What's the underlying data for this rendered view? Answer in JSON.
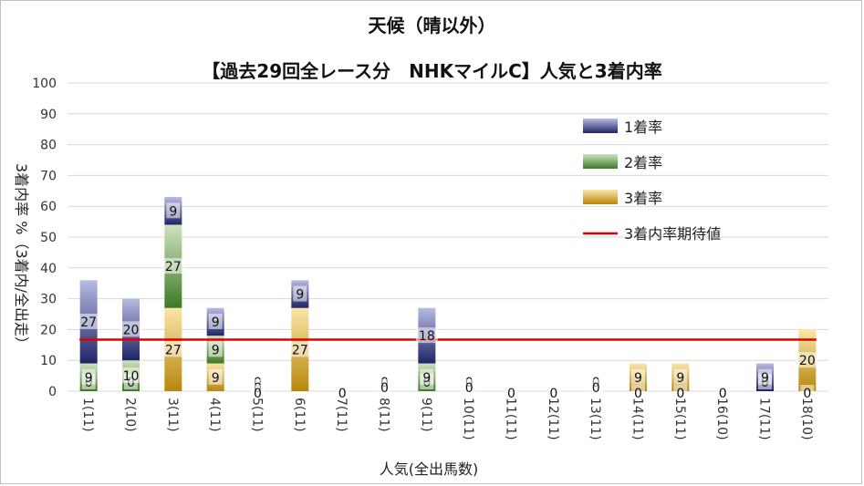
{
  "chart_data": {
    "type": "bar",
    "stacked": true,
    "title": "天候（晴以外）",
    "subtitle": "【過去29回全レース分　NHKマイルC】人気と3着内率",
    "xlabel": "人気(全出馬数)",
    "ylabel": "3着内率 %（3着内/全出走）",
    "ylim": [
      0,
      100
    ],
    "y_ticks": [
      "0",
      "10",
      "20",
      "30",
      "40",
      "50",
      "60",
      "70",
      "80",
      "90",
      "100"
    ],
    "categories": [
      "1(11)",
      "2(10)",
      "3(11)",
      "4(11)",
      "5(11)",
      "6(11)",
      "7(11)",
      "8(11)",
      "9(11)",
      "10(11)",
      "11(11)",
      "12(11)",
      "13(11)",
      "14(11)",
      "15(11)",
      "16(10)",
      "17(11)",
      "18(10)"
    ],
    "series": [
      {
        "name": "3着率",
        "color": "#d4a017",
        "values": [
          0,
          0,
          27,
          9,
          0,
          27,
          0,
          0,
          0,
          0,
          0,
          0,
          0,
          9,
          9,
          0,
          0,
          20
        ]
      },
      {
        "name": "2着率",
        "color": "#5b9a3c",
        "values": [
          9,
          10,
          27,
          9,
          0,
          0,
          0,
          0,
          9,
          0,
          0,
          0,
          0,
          0,
          0,
          0,
          0,
          0
        ]
      },
      {
        "name": "1着率",
        "color": "#3a3f8f",
        "values": [
          27,
          20,
          9,
          9,
          0,
          9,
          0,
          0,
          18,
          0,
          0,
          0,
          0,
          0,
          0,
          0,
          9,
          0
        ]
      }
    ],
    "data_labels": [
      [
        "0",
        "9",
        "27"
      ],
      [
        "0",
        "10",
        "20"
      ],
      [
        "27",
        "27",
        "9"
      ],
      [
        "9",
        "9",
        "9"
      ],
      [
        "0",
        "0",
        "0"
      ],
      [
        "27",
        "",
        "9"
      ],
      [
        "",
        "",
        "0"
      ],
      [
        "0",
        "0",
        ""
      ],
      [
        "0",
        "9",
        "18"
      ],
      [
        "0",
        "0",
        ""
      ],
      [
        "",
        "",
        "0"
      ],
      [
        "",
        "",
        "0"
      ],
      [
        "0",
        "0",
        ""
      ],
      [
        "9",
        "",
        "0"
      ],
      [
        "9",
        "",
        "0"
      ],
      [
        "",
        "",
        "0"
      ],
      [
        "0",
        "",
        "9"
      ],
      [
        "20",
        "",
        "0"
      ]
    ],
    "reference_line": {
      "name": "3着内率期待値",
      "value": 16.7,
      "color": "#e00000"
    },
    "legend": [
      "1着率",
      "2着率",
      "3着率",
      "3着内率期待値"
    ],
    "legend_position": "top-right",
    "grid": true
  }
}
